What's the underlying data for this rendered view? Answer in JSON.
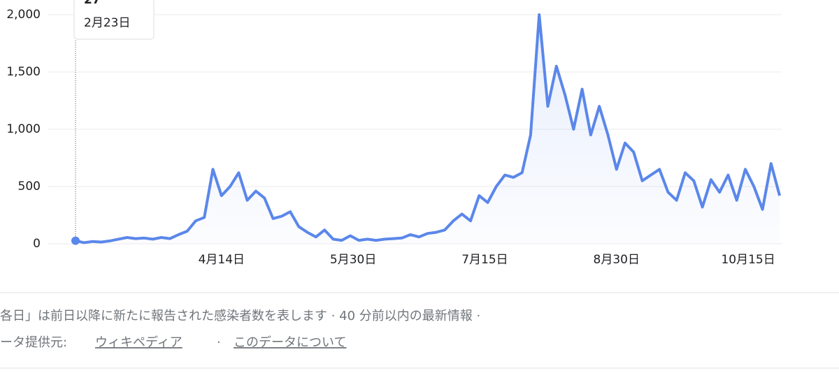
{
  "chart_data": {
    "type": "line",
    "x": [
      "2月23日",
      "2月26日",
      "2月29日",
      "3月3日",
      "3月6日",
      "3月9日",
      "3月12日",
      "3月15日",
      "3月18日",
      "3月21日",
      "3月24日",
      "3月27日",
      "3月30日",
      "4月2日",
      "4月5日",
      "4月8日",
      "4月11日",
      "4月14日",
      "4月17日",
      "4月20日",
      "4月23日",
      "4月26日",
      "4月29日",
      "5月2日",
      "5月5日",
      "5月8日",
      "5月11日",
      "5月14日",
      "5月17日",
      "5月20日",
      "5月23日",
      "5月26日",
      "5月29日",
      "6月1日",
      "6月4日",
      "6月7日",
      "6月10日",
      "6月13日",
      "6月16日",
      "6月19日",
      "6月22日",
      "6月25日",
      "6月28日",
      "7月1日",
      "7月4日",
      "7月7日",
      "7月10日",
      "7月13日",
      "7月16日",
      "7月19日",
      "7月22日",
      "7月25日",
      "7月28日",
      "7月31日",
      "8月3日",
      "8月6日",
      "8月9日",
      "8月12日",
      "8月15日",
      "8月18日",
      "8月21日",
      "8月24日",
      "8月27日",
      "8月30日",
      "9月2日",
      "9月5日",
      "9月8日",
      "9月11日",
      "9月14日",
      "9月17日",
      "9月20日",
      "9月23日",
      "9月26日",
      "9月29日",
      "10月2日",
      "10月5日",
      "10月8日",
      "10月11日",
      "10月14日",
      "10月17日",
      "10月20日",
      "10月23日",
      "10月26日"
    ],
    "values": [
      27,
      10,
      20,
      15,
      25,
      40,
      55,
      45,
      50,
      40,
      55,
      45,
      80,
      110,
      200,
      230,
      650,
      420,
      500,
      620,
      380,
      460,
      400,
      220,
      240,
      280,
      150,
      100,
      60,
      120,
      40,
      30,
      70,
      30,
      40,
      30,
      40,
      45,
      50,
      80,
      60,
      90,
      100,
      120,
      200,
      260,
      200,
      420,
      360,
      500,
      600,
      580,
      620,
      950,
      2000,
      1200,
      1550,
      1300,
      1000,
      1350,
      950,
      1200,
      950,
      650,
      880,
      800,
      550,
      600,
      650,
      450,
      380,
      620,
      550,
      320,
      560,
      450,
      600,
      380,
      650,
      500,
      300,
      700,
      420
    ],
    "color": "#5b87ea",
    "ylim": [
      0,
      2000
    ],
    "yticks": [
      0,
      500,
      {
        "value": 1000,
        "label": "1,000"
      },
      {
        "value": 1500,
        "label": "1,500"
      },
      {
        "value": 2000,
        "label": "2,000"
      }
    ],
    "xticks": [
      "4月14日",
      "5月30日",
      "7月15日",
      "8月30日",
      "10月15日"
    ],
    "grid": true
  },
  "footer": {
    "note": "各日」は前日以降に新たに報告された感染者数を表します · 40 分前以内の最新情報 ·",
    "source_label": "ータ提供元:",
    "separator": "·",
    "links": [
      "ウィキペディア",
      "このデータについて"
    ]
  }
}
